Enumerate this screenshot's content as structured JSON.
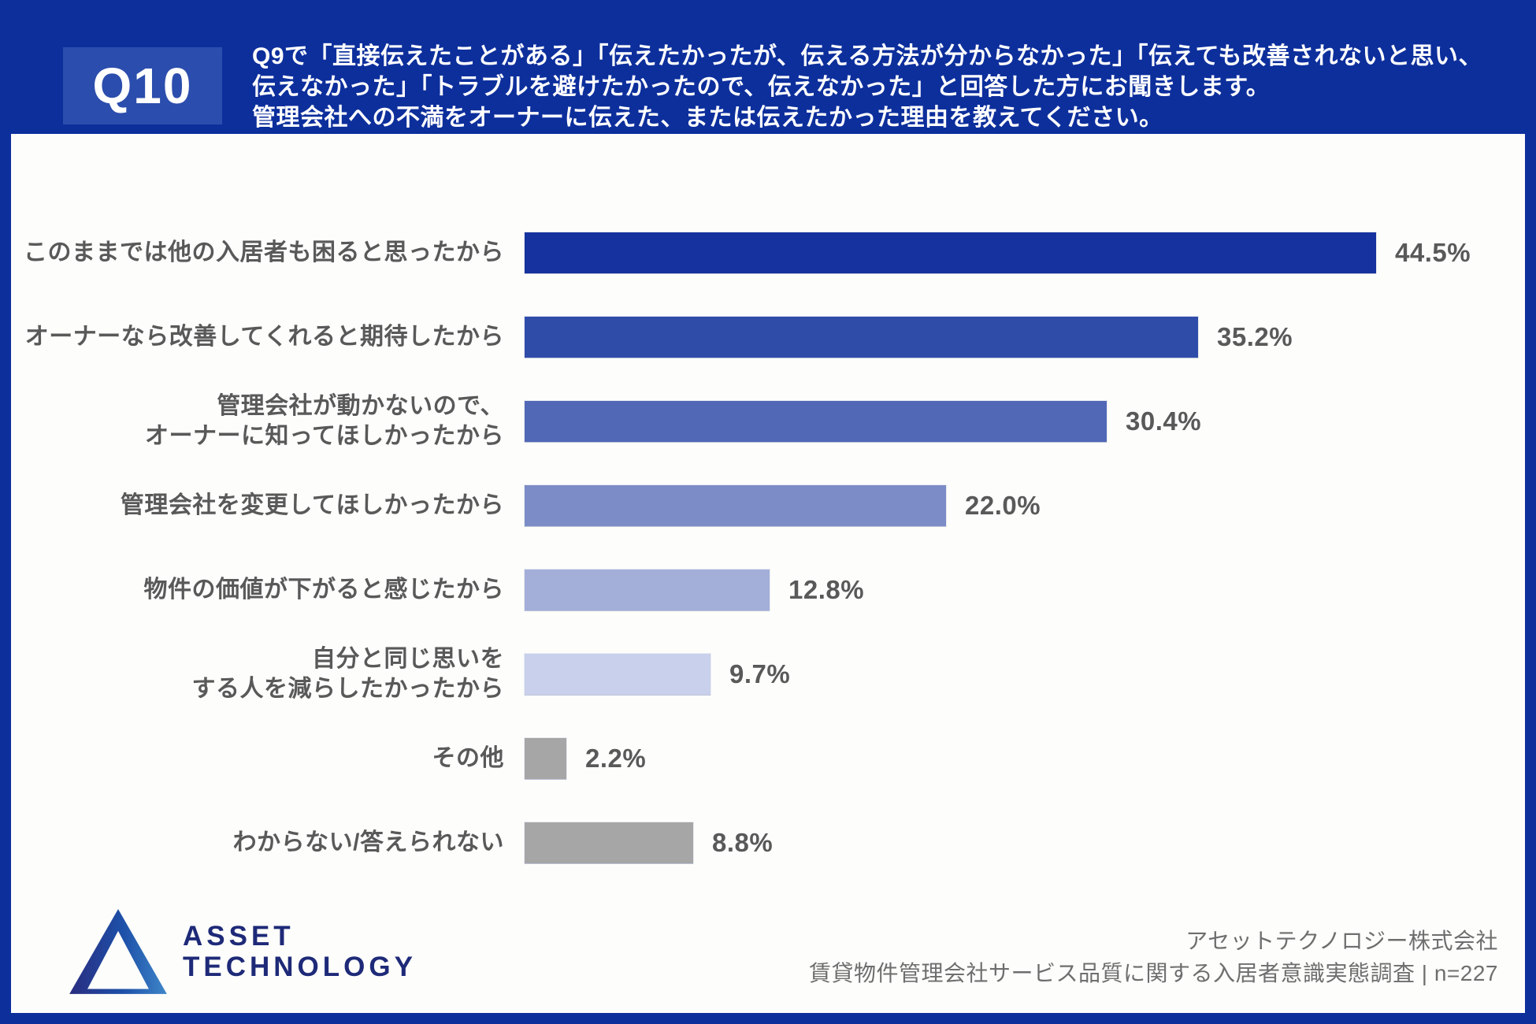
{
  "header": {
    "badge": "Q10",
    "question_lines": [
      "Q9で「直接伝えたことがある」「伝えたかったが、伝える方法が分からなかった」「伝えても改善されないと思い、",
      "伝えなかった」「トラブルを避けたかったので、伝えなかった」と回答した方にお聞きします。",
      "管理会社への不満をオーナーに伝えた、または伝えたかった理由を教えてください。"
    ]
  },
  "chart_data": {
    "type": "bar",
    "orientation": "horizontal",
    "categories": [
      [
        "このままでは他の入居者も困ると思ったから"
      ],
      [
        "オーナーなら改善してくれると期待したから"
      ],
      [
        "管理会社が動かないので、",
        "オーナーに知ってほしかったから"
      ],
      [
        "管理会社を変更してほしかったから"
      ],
      [
        "物件の価値が下がると感じたから"
      ],
      [
        "自分と同じ思いを",
        "する人を減らしたかったから"
      ],
      [
        "その他"
      ],
      [
        "わからない/答えられない"
      ]
    ],
    "values": [
      44.5,
      35.2,
      30.4,
      22.0,
      12.8,
      9.7,
      2.2,
      8.8
    ],
    "value_labels": [
      "44.5%",
      "35.2%",
      "30.4%",
      "22.0%",
      "12.8%",
      "9.7%",
      "2.2%",
      "8.8%"
    ],
    "bar_colors": [
      "#15329e",
      "#2f4ca9",
      "#5068b6",
      "#7b8cc6",
      "#a3aed9",
      "#c9d0ec",
      "#a6a6a6",
      "#a6a6a6"
    ],
    "xlim": [
      0,
      45
    ],
    "grid": false,
    "legend": null,
    "title": ""
  },
  "footer": {
    "logo_line1": "ASSET",
    "logo_line2": "TECHNOLOGY",
    "credit_line1": "アセットテクノロジー株式会社",
    "credit_line2": "賃貸物件管理会社サービス品質に関する入居者意識実態調査 | n=227"
  },
  "colors": {
    "background_navy": "#0d2f9c",
    "badge_blue": "#2b4dad",
    "panel_white": "#fdfdfb",
    "text_gray": "#595959",
    "credit_gray": "#6e6e6e",
    "logo_navy": "#1e2a78",
    "gray_bar": "#a6a6a6"
  }
}
